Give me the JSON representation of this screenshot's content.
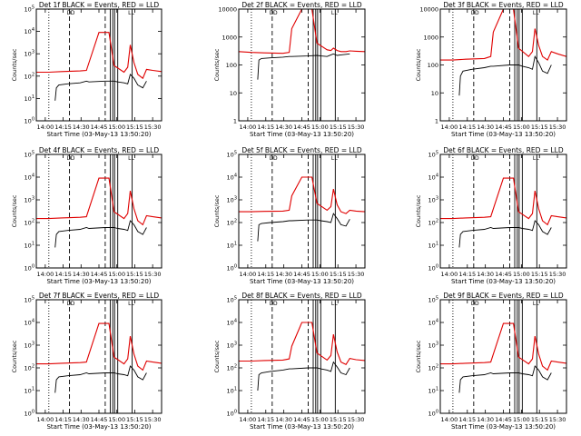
{
  "figure": {
    "description_labels": {
      "xlabel": "Start Time (03-May-13 13:50:20)",
      "ylabel": "Counts/sec"
    }
  },
  "chart_data": [
    {
      "type": "line",
      "title": "Det 1f BLACK = Events, RED = LLD",
      "xlabel": "Start Time (03-May-13 13:50:20)",
      "ylabel": "Counts/sec",
      "yscale": "log",
      "ylim": [
        1,
        100000
      ],
      "y_ticks": [
        "10^0",
        "10^1",
        "10^2",
        "10^3",
        "10^4",
        "10^5"
      ],
      "x_ticks": [
        "14:00",
        "14:15",
        "14:30",
        "14:45",
        "15:00",
        "15:15",
        "15:30"
      ],
      "xlim_minutes": [
        0,
        100
      ],
      "markers": [
        "D",
        "D",
        "L",
        "L"
      ],
      "series": [
        {
          "name": "RED = LLD",
          "color": "#e00000",
          "x": [
            0,
            10,
            20,
            35,
            40,
            42,
            50,
            58,
            62,
            70,
            73,
            75,
            78,
            81,
            85,
            88,
            93,
            100
          ],
          "y": [
            150,
            150,
            160,
            170,
            180,
            400,
            9000,
            9000,
            300,
            150,
            250,
            2500,
            400,
            120,
            80,
            200,
            180,
            160
          ]
        },
        {
          "name": "BLACK = Events",
          "color": "#000000",
          "x": [
            15,
            16,
            18,
            25,
            35,
            40,
            42,
            55,
            62,
            65,
            70,
            73,
            75,
            78,
            81,
            85,
            88
          ],
          "y": [
            8,
            30,
            40,
            45,
            50,
            60,
            55,
            60,
            60,
            55,
            50,
            45,
            120,
            80,
            40,
            30,
            60
          ]
        }
      ]
    },
    {
      "type": "line",
      "title": "Det 2f BLACK = Events, RED = LLD",
      "xlabel": "Start Time (03-May-13 13:50:20)",
      "ylabel": "Counts/sec",
      "yscale": "log",
      "ylim": [
        1,
        10000
      ],
      "y_ticks": [
        "1",
        "10",
        "100",
        "1000",
        "10000"
      ],
      "x_ticks": [
        "14:00",
        "14:15",
        "14:30",
        "14:45",
        "15:00",
        "15:15",
        "15:30"
      ],
      "xlim_minutes": [
        0,
        100
      ],
      "markers": [
        "D",
        "D",
        "L",
        "L"
      ],
      "series": [
        {
          "name": "RED = LLD",
          "color": "#e00000",
          "x": [
            0,
            10,
            20,
            35,
            40,
            42,
            50,
            58,
            62,
            70,
            73,
            75,
            78,
            81,
            85,
            88,
            93,
            100
          ],
          "y": [
            300,
            280,
            270,
            260,
            280,
            2000,
            10000,
            10000,
            600,
            350,
            330,
            400,
            330,
            300,
            300,
            320,
            310,
            300
          ]
        },
        {
          "name": "BLACK = Events",
          "color": "#000000",
          "x": [
            15,
            16,
            18,
            25,
            35,
            40,
            42,
            55,
            62,
            65,
            70,
            73,
            75,
            78,
            81,
            85,
            88
          ],
          "y": [
            30,
            150,
            170,
            180,
            190,
            200,
            200,
            210,
            220,
            210,
            200,
            230,
            250,
            220,
            230,
            240,
            250
          ]
        }
      ]
    },
    {
      "type": "line",
      "title": "Det 3f BLACK = Events, RED = LLD",
      "xlabel": "Start Time (03-May-13 13:50:20)",
      "ylabel": "Counts/sec",
      "yscale": "log",
      "ylim": [
        1,
        10000
      ],
      "y_ticks": [
        "1",
        "10",
        "100",
        "1000",
        "10000"
      ],
      "x_ticks": [
        "14:00",
        "14:15",
        "14:30",
        "14:45",
        "15:00",
        "15:15",
        "15:30"
      ],
      "xlim_minutes": [
        0,
        100
      ],
      "markers": [
        "D",
        "D",
        "L",
        "L"
      ],
      "series": [
        {
          "name": "RED = LLD",
          "color": "#e00000",
          "x": [
            0,
            10,
            20,
            35,
            40,
            42,
            50,
            58,
            62,
            70,
            73,
            75,
            78,
            81,
            85,
            88,
            93,
            100
          ],
          "y": [
            150,
            150,
            160,
            170,
            200,
            1500,
            10000,
            10000,
            400,
            200,
            300,
            2000,
            500,
            200,
            150,
            300,
            250,
            200
          ]
        },
        {
          "name": "BLACK = Events",
          "color": "#000000",
          "x": [
            15,
            16,
            18,
            25,
            35,
            40,
            42,
            55,
            62,
            65,
            70,
            73,
            75,
            78,
            81,
            85,
            88
          ],
          "y": [
            8,
            40,
            60,
            70,
            80,
            90,
            90,
            100,
            100,
            90,
            80,
            70,
            200,
            120,
            60,
            50,
            100
          ]
        }
      ]
    },
    {
      "type": "line",
      "title": "Det 4f BLACK = Events, RED = LLD",
      "xlabel": "Start Time (03-May-13 13:50:20)",
      "ylabel": "Counts/sec",
      "yscale": "log",
      "ylim": [
        1,
        100000
      ],
      "y_ticks": [
        "10^0",
        "10^1",
        "10^2",
        "10^3",
        "10^4",
        "10^5"
      ],
      "x_ticks": [
        "14:00",
        "14:15",
        "14:30",
        "14:45",
        "15:00",
        "15:15",
        "15:30"
      ],
      "xlim_minutes": [
        0,
        100
      ],
      "markers": [
        "D",
        "D",
        "L",
        "L"
      ],
      "series": [
        {
          "name": "RED = LLD",
          "color": "#e00000",
          "x": [
            0,
            10,
            20,
            35,
            40,
            42,
            50,
            58,
            62,
            70,
            73,
            75,
            78,
            81,
            85,
            88,
            93,
            100
          ],
          "y": [
            150,
            150,
            160,
            170,
            180,
            400,
            9000,
            9000,
            300,
            150,
            250,
            2500,
            400,
            120,
            80,
            200,
            180,
            160
          ]
        },
        {
          "name": "BLACK = Events",
          "color": "#000000",
          "x": [
            15,
            16,
            18,
            25,
            35,
            40,
            42,
            55,
            62,
            65,
            70,
            73,
            75,
            78,
            81,
            85,
            88
          ],
          "y": [
            8,
            30,
            40,
            45,
            50,
            60,
            55,
            60,
            60,
            55,
            50,
            45,
            120,
            80,
            40,
            30,
            60
          ]
        }
      ]
    },
    {
      "type": "line",
      "title": "Det 5f BLACK = Events, RED = LLD",
      "xlabel": "Start Time (03-May-13 13:50:20)",
      "ylabel": "Counts/sec",
      "yscale": "log",
      "ylim": [
        1,
        100000
      ],
      "y_ticks": [
        "10^0",
        "10^1",
        "10^2",
        "10^3",
        "10^4",
        "10^5"
      ],
      "x_ticks": [
        "14:00",
        "14:15",
        "14:30",
        "14:45",
        "15:00",
        "15:15",
        "15:30"
      ],
      "xlim_minutes": [
        0,
        100
      ],
      "markers": [
        "D",
        "D",
        "L",
        "L"
      ],
      "series": [
        {
          "name": "RED = LLD",
          "color": "#e00000",
          "x": [
            0,
            10,
            20,
            35,
            40,
            42,
            50,
            58,
            62,
            70,
            73,
            75,
            78,
            81,
            85,
            88,
            93,
            100
          ],
          "y": [
            300,
            300,
            310,
            320,
            350,
            1500,
            10000,
            10000,
            700,
            350,
            500,
            3000,
            600,
            300,
            250,
            350,
            320,
            300
          ]
        },
        {
          "name": "BLACK = Events",
          "color": "#000000",
          "x": [
            15,
            16,
            18,
            25,
            35,
            40,
            42,
            55,
            62,
            65,
            70,
            73,
            75,
            78,
            81,
            85,
            88
          ],
          "y": [
            15,
            80,
            90,
            100,
            110,
            120,
            120,
            130,
            130,
            120,
            110,
            100,
            250,
            150,
            80,
            70,
            140
          ]
        }
      ]
    },
    {
      "type": "line",
      "title": "Det 6f BLACK = Events, RED = LLD",
      "xlabel": "Start Time (03-May-13 13:50:20)",
      "ylabel": "Counts/sec",
      "yscale": "log",
      "ylim": [
        1,
        100000
      ],
      "y_ticks": [
        "10^0",
        "10^1",
        "10^2",
        "10^3",
        "10^4",
        "10^5"
      ],
      "x_ticks": [
        "14:00",
        "14:15",
        "14:30",
        "14:45",
        "15:00",
        "15:15",
        "15:30"
      ],
      "xlim_minutes": [
        0,
        100
      ],
      "markers": [
        "D",
        "D",
        "L",
        "L"
      ],
      "series": [
        {
          "name": "RED = LLD",
          "color": "#e00000",
          "x": [
            0,
            10,
            20,
            35,
            40,
            42,
            50,
            58,
            62,
            70,
            73,
            75,
            78,
            81,
            85,
            88,
            93,
            100
          ],
          "y": [
            150,
            150,
            160,
            170,
            180,
            400,
            9000,
            9000,
            300,
            150,
            250,
            2500,
            400,
            120,
            80,
            200,
            180,
            160
          ]
        },
        {
          "name": "BLACK = Events",
          "color": "#000000",
          "x": [
            15,
            16,
            18,
            25,
            35,
            40,
            42,
            55,
            62,
            65,
            70,
            73,
            75,
            78,
            81,
            85,
            88
          ],
          "y": [
            8,
            30,
            40,
            45,
            50,
            60,
            55,
            60,
            60,
            55,
            50,
            45,
            120,
            80,
            40,
            30,
            60
          ]
        }
      ]
    },
    {
      "type": "line",
      "title": "Det 7f BLACK = Events, RED = LLD",
      "xlabel": "Start Time (03-May-13 13:50:20)",
      "ylabel": "Counts/sec",
      "yscale": "log",
      "ylim": [
        1,
        100000
      ],
      "y_ticks": [
        "10^0",
        "10^1",
        "10^2",
        "10^3",
        "10^4",
        "10^5"
      ],
      "x_ticks": [
        "14:00",
        "14:15",
        "14:30",
        "14:45",
        "15:00",
        "15:15",
        "15:30"
      ],
      "xlim_minutes": [
        0,
        100
      ],
      "markers": [
        "D",
        "D",
        "L",
        "L"
      ],
      "series": [
        {
          "name": "RED = LLD",
          "color": "#e00000",
          "x": [
            0,
            10,
            20,
            35,
            40,
            42,
            50,
            58,
            62,
            70,
            73,
            75,
            78,
            81,
            85,
            88,
            93,
            100
          ],
          "y": [
            150,
            150,
            160,
            170,
            180,
            400,
            9000,
            9000,
            300,
            150,
            250,
            2500,
            400,
            120,
            80,
            200,
            180,
            160
          ]
        },
        {
          "name": "BLACK = Events",
          "color": "#000000",
          "x": [
            15,
            16,
            18,
            25,
            35,
            40,
            42,
            55,
            62,
            65,
            70,
            73,
            75,
            78,
            81,
            85,
            88
          ],
          "y": [
            8,
            30,
            40,
            45,
            50,
            60,
            55,
            60,
            60,
            55,
            50,
            45,
            120,
            80,
            40,
            30,
            60
          ]
        }
      ]
    },
    {
      "type": "line",
      "title": "Det 8f BLACK = Events, RED = LLD",
      "xlabel": "Start Time (03-May-13 13:50:20)",
      "ylabel": "Counts/sec",
      "yscale": "log",
      "ylim": [
        1,
        100000
      ],
      "y_ticks": [
        "10^0",
        "10^1",
        "10^2",
        "10^3",
        "10^4",
        "10^5"
      ],
      "x_ticks": [
        "14:00",
        "14:15",
        "14:30",
        "14:45",
        "15:00",
        "15:15",
        "15:30"
      ],
      "xlim_minutes": [
        0,
        100
      ],
      "markers": [
        "D",
        "D",
        "L",
        "L"
      ],
      "series": [
        {
          "name": "RED = LLD",
          "color": "#e00000",
          "x": [
            0,
            10,
            20,
            35,
            40,
            42,
            50,
            58,
            62,
            70,
            73,
            75,
            78,
            81,
            85,
            88,
            93,
            100
          ],
          "y": [
            200,
            200,
            210,
            220,
            250,
            900,
            10000,
            10000,
            450,
            220,
            350,
            3000,
            500,
            180,
            140,
            260,
            230,
            210
          ]
        },
        {
          "name": "BLACK = Events",
          "color": "#000000",
          "x": [
            15,
            16,
            18,
            25,
            35,
            40,
            42,
            55,
            62,
            65,
            70,
            73,
            75,
            78,
            81,
            85,
            88
          ],
          "y": [
            10,
            50,
            60,
            70,
            80,
            90,
            90,
            100,
            100,
            90,
            80,
            70,
            180,
            110,
            60,
            50,
            100
          ]
        }
      ]
    },
    {
      "type": "line",
      "title": "Det 9f BLACK = Events, RED = LLD",
      "xlabel": "Start Time (03-May-13 13:50:20)",
      "ylabel": "Counts/sec",
      "yscale": "log",
      "ylim": [
        1,
        100000
      ],
      "y_ticks": [
        "10^0",
        "10^1",
        "10^2",
        "10^3",
        "10^4",
        "10^5"
      ],
      "x_ticks": [
        "14:00",
        "14:15",
        "14:30",
        "14:45",
        "15:00",
        "15:15",
        "15:30"
      ],
      "xlim_minutes": [
        0,
        100
      ],
      "markers": [
        "D",
        "D",
        "L",
        "L"
      ],
      "series": [
        {
          "name": "RED = LLD",
          "color": "#e00000",
          "x": [
            0,
            10,
            20,
            35,
            40,
            42,
            50,
            58,
            62,
            70,
            73,
            75,
            78,
            81,
            85,
            88,
            93,
            100
          ],
          "y": [
            150,
            150,
            160,
            170,
            180,
            400,
            9000,
            9000,
            300,
            150,
            250,
            2500,
            400,
            120,
            80,
            200,
            180,
            160
          ]
        },
        {
          "name": "BLACK = Events",
          "color": "#000000",
          "x": [
            15,
            16,
            18,
            25,
            35,
            40,
            42,
            55,
            62,
            65,
            70,
            73,
            75,
            78,
            81,
            85,
            88
          ],
          "y": [
            8,
            30,
            40,
            45,
            50,
            60,
            55,
            60,
            60,
            55,
            50,
            45,
            120,
            80,
            40,
            30,
            60
          ]
        }
      ]
    }
  ]
}
